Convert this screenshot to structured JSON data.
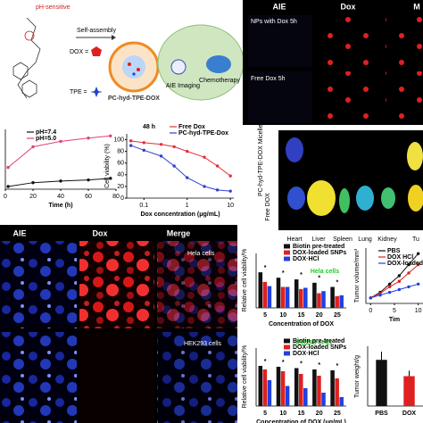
{
  "schematic": {
    "ph_label": "pH-sensitive",
    "self_assembly": "Self-assembly",
    "dox_label": "DOX =",
    "tpe_label": "TPE =",
    "micelle": "PC-hyd-TPE-DOX",
    "aie_imaging": "AIE Imaging",
    "chemotherapy": "Chemotherapy"
  },
  "cell_imaging": {
    "columns": [
      "AIE",
      "Dox",
      "M"
    ],
    "rows": [
      "NPs with Dox 5h",
      "Free Dox 5h"
    ]
  },
  "ex_vivo": {
    "rows": [
      "PC-hyd-TPE-DOX Micelles",
      "Free DOX"
    ],
    "organs": [
      "Heart",
      "Liver",
      "Spleen",
      "Lung",
      "Kidney",
      "Tu"
    ]
  },
  "co_culture": {
    "columns": [
      "AIE",
      "Dox",
      "Merge"
    ],
    "rows": [
      "Hela cells",
      "HEK293 cells"
    ]
  },
  "chart_data": [
    {
      "type": "line",
      "xlabel": "Time (h)",
      "x": [
        2,
        20,
        40,
        60,
        76
      ],
      "xlim": [
        0,
        80
      ],
      "xticks": [
        0,
        20,
        40,
        60,
        80
      ],
      "ylim": [
        0,
        110
      ],
      "legend": "upper left",
      "series": [
        {
          "name": "pH=7.4",
          "color": "#111111",
          "values": [
            5,
            12,
            15,
            17,
            20
          ]
        },
        {
          "name": "pH=5.0",
          "color": "#e0407a",
          "values": [
            40,
            78,
            88,
            94,
            98
          ]
        }
      ]
    },
    {
      "type": "line",
      "title": "48 h",
      "xlabel": "Dox concentration (μg/mL)",
      "ylabel": "Cell viability (%)",
      "log_x": true,
      "x": [
        0.05,
        0.1,
        0.25,
        0.5,
        1,
        2.5,
        5,
        10
      ],
      "xlim": [
        0.04,
        12
      ],
      "xticks": [
        0.1,
        1,
        10
      ],
      "ylim": [
        0,
        110
      ],
      "yticks": [
        0,
        20,
        40,
        60,
        80,
        100
      ],
      "legend": "upper right",
      "series": [
        {
          "name": "Free Dox",
          "color": "#e03040",
          "values": [
            98,
            95,
            92,
            88,
            80,
            70,
            55,
            38
          ]
        },
        {
          "name": "PC-hyd-TPE-Dox",
          "color": "#3040d0",
          "values": [
            90,
            82,
            72,
            55,
            35,
            20,
            14,
            12
          ]
        }
      ]
    },
    {
      "type": "bar",
      "ylabel": "Relative cell viability/%",
      "xlabel": "Concentration of DOX",
      "annotation": "Hela cells",
      "significance": "*",
      "categories": [
        "5",
        "10",
        "15",
        "20",
        "25"
      ],
      "ylim": [
        0,
        130
      ],
      "legend": "upper right",
      "series": [
        {
          "name": "Biotin pre-treated",
          "color": "#111111",
          "values": [
            85,
            72,
            68,
            60,
            50
          ]
        },
        {
          "name": "DOX-loaded SNPs",
          "color": "#e02020",
          "values": [
            62,
            50,
            45,
            35,
            28
          ]
        },
        {
          "name": "DOX·HCl",
          "color": "#2040e0",
          "values": [
            52,
            50,
            48,
            40,
            30
          ]
        }
      ]
    },
    {
      "type": "bar",
      "ylabel": "Relative cell viability/%",
      "xlabel": "Concentration of DOX (μg/mL)",
      "annotation": "HEK293 cells",
      "significance": "*",
      "categories": [
        "5",
        "10",
        "15",
        "20",
        "25"
      ],
      "ylim": [
        0,
        130
      ],
      "legend": "upper right",
      "series": [
        {
          "name": "Biotin pre-treated",
          "color": "#111111",
          "values": [
            90,
            88,
            85,
            82,
            80
          ]
        },
        {
          "name": "DOX-loaded SNPs",
          "color": "#e02020",
          "values": [
            82,
            78,
            72,
            68,
            62
          ]
        },
        {
          "name": "DOX·HCl",
          "color": "#2040e0",
          "values": [
            58,
            45,
            40,
            30,
            20
          ]
        }
      ]
    },
    {
      "type": "line",
      "ylabel": "Tumor volume/mm³",
      "xlabel": "Tim",
      "x": [
        0,
        2,
        4,
        6,
        8,
        10
      ],
      "xlim": [
        -1,
        11
      ],
      "xticks": [
        0,
        5,
        10
      ],
      "ylim": [
        0,
        1000
      ],
      "legend": "upper left",
      "series": [
        {
          "name": "PBS",
          "color": "#111111",
          "values": [
            100,
            200,
            350,
            500,
            700,
            900
          ]
        },
        {
          "name": "DOX HCl",
          "color": "#e02020",
          "values": [
            100,
            180,
            300,
            400,
            550,
            700
          ]
        },
        {
          "name": "DOX-loaded SN",
          "color": "#2040e0",
          "values": [
            100,
            150,
            200,
            250,
            300,
            350
          ]
        }
      ]
    },
    {
      "type": "bar",
      "ylabel": "Tumor weight/g",
      "categories": [
        "PBS",
        "DOX"
      ],
      "values": [
        1.7,
        1.1
      ],
      "errors": [
        0.3,
        0.2
      ],
      "colors": [
        "#111111",
        "#e02020"
      ],
      "ylim": [
        0,
        2.2
      ]
    }
  ]
}
